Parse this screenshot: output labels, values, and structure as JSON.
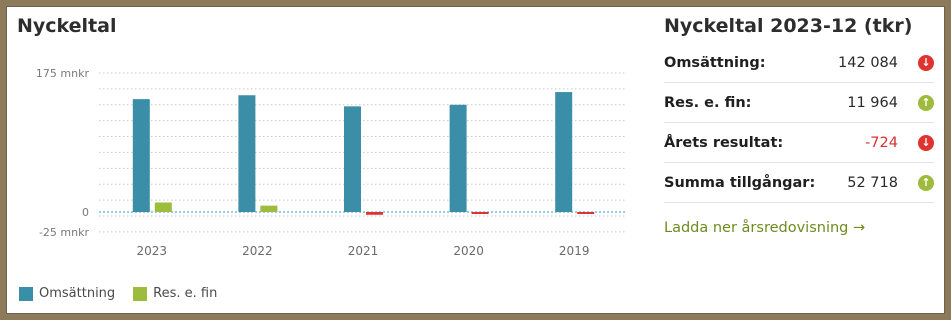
{
  "left": {
    "title": "Nyckeltal",
    "legend": [
      {
        "label": "Omsättning",
        "color": "#3b8ea8"
      },
      {
        "label": "Res. e. fin",
        "color": "#9dbb3d"
      }
    ]
  },
  "chart_data": {
    "type": "bar",
    "categories": [
      "2023",
      "2022",
      "2021",
      "2020",
      "2019"
    ],
    "series": [
      {
        "name": "Omsättning",
        "color": "#3b8ea8",
        "values": [
          142084,
          147000,
          133000,
          135000,
          151000
        ]
      },
      {
        "name": "Res. e. fin",
        "color": "#9dbb3d",
        "negative_color": "#e0332f",
        "values": [
          11964,
          8000,
          -3500,
          -2500,
          -2500
        ]
      }
    ],
    "ylim": [
      -25000,
      175000
    ],
    "y_tick_labels": {
      "top": "175 mnkr",
      "zero": "0",
      "bottom": "-25 mnkr"
    },
    "grid": true
  },
  "right": {
    "title": "Nyckeltal 2023-12 (tkr)",
    "items": [
      {
        "label": "Omsättning:",
        "value": "142 084",
        "trend": "down",
        "trend_icon": "↓",
        "negative": false
      },
      {
        "label": "Res. e. fin:",
        "value": "11 964",
        "trend": "up",
        "trend_icon": "↑",
        "negative": false
      },
      {
        "label": "Årets resultat:",
        "value": "-724",
        "trend": "down",
        "trend_icon": "↓",
        "negative": true
      },
      {
        "label": "Summa tillgångar:",
        "value": "52 718",
        "trend": "up",
        "trend_icon": "↑",
        "negative": false
      }
    ],
    "download_link": "Ladda ner årsredovisning →"
  }
}
